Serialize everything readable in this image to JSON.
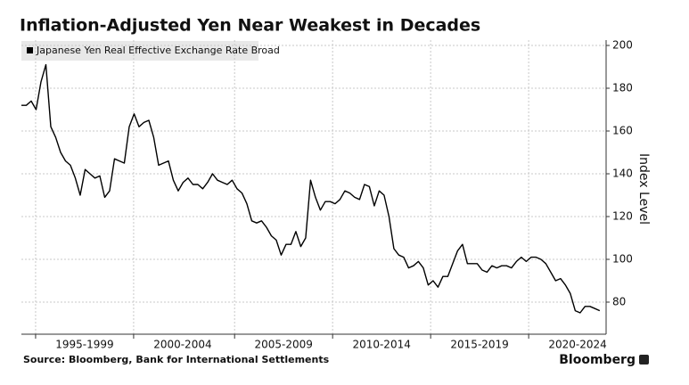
{
  "chart_data": {
    "type": "line",
    "title": "Inflation-Adjusted Yen Near Weakest in Decades",
    "y_label": "Index Level",
    "source": "Source: Bloomberg, Bank for International Settlements",
    "brand": "Bloomberg",
    "y_axis_side": "right",
    "grid": true,
    "series": [
      {
        "name": "Japanese Yen Real Effective Exchange Rate Broad",
        "color": "#000000",
        "values": [
          172,
          172,
          174,
          170,
          183,
          191,
          162,
          157,
          150,
          146,
          144,
          138,
          130,
          142,
          140,
          138,
          139,
          129,
          132,
          147,
          146,
          145,
          162,
          168,
          162,
          164,
          165,
          157,
          144,
          145,
          146,
          137,
          132,
          136,
          138,
          135,
          135,
          133,
          136,
          140,
          137,
          136,
          135,
          137,
          133,
          131,
          126,
          118,
          117,
          118,
          115,
          111,
          109,
          102,
          107,
          107,
          113,
          106,
          110,
          137,
          129,
          123,
          127,
          127,
          126,
          128,
          132,
          131,
          129,
          128,
          135,
          134,
          125,
          132,
          130,
          120,
          105,
          102,
          101,
          96,
          97,
          99,
          96,
          88,
          90,
          87,
          92,
          92,
          98,
          104,
          107,
          98,
          98,
          98,
          95,
          94,
          97,
          96,
          97,
          97,
          96,
          99,
          101,
          99,
          101,
          101,
          100,
          98,
          94,
          90,
          91,
          88,
          84,
          76,
          75,
          78,
          78,
          77,
          76
        ]
      }
    ],
    "xlim": [
      0,
      119.3
    ],
    "xticks": [
      {
        "value": 12.9,
        "label": "1995-1999"
      },
      {
        "value": 32.9,
        "label": "2000-2004"
      },
      {
        "value": 53.5,
        "label": "2005-2009"
      },
      {
        "value": 73.5,
        "label": "2010-2014"
      },
      {
        "value": 93.5,
        "label": "2015-2019"
      },
      {
        "value": 113.5,
        "label": "2020-2024"
      }
    ],
    "ylim": [
      65,
      202.5
    ],
    "yticks": [
      80,
      100,
      120,
      140,
      160,
      180,
      200
    ]
  }
}
